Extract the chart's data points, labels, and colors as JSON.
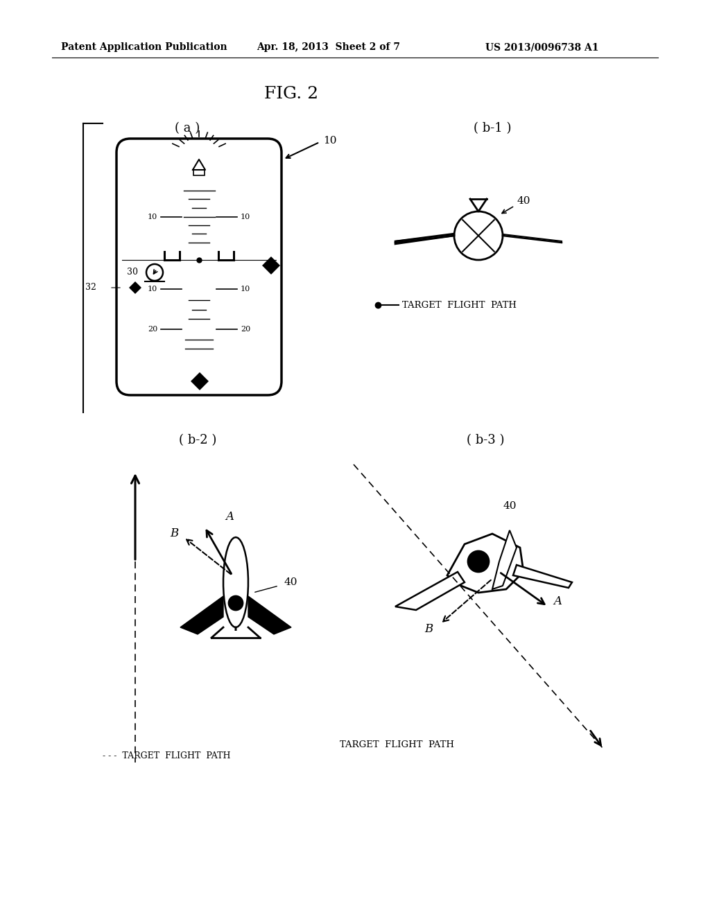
{
  "bg_color": "#ffffff",
  "header_left": "Patent Application Publication",
  "header_mid": "Apr. 18, 2013  Sheet 2 of 7",
  "header_right": "US 2013/0096738 A1",
  "fig_title": "FIG. 2",
  "sub_a": "( a )",
  "sub_b1": "( b-1 )",
  "sub_b2": "( b-2 )",
  "sub_b3": "( b-3 )"
}
